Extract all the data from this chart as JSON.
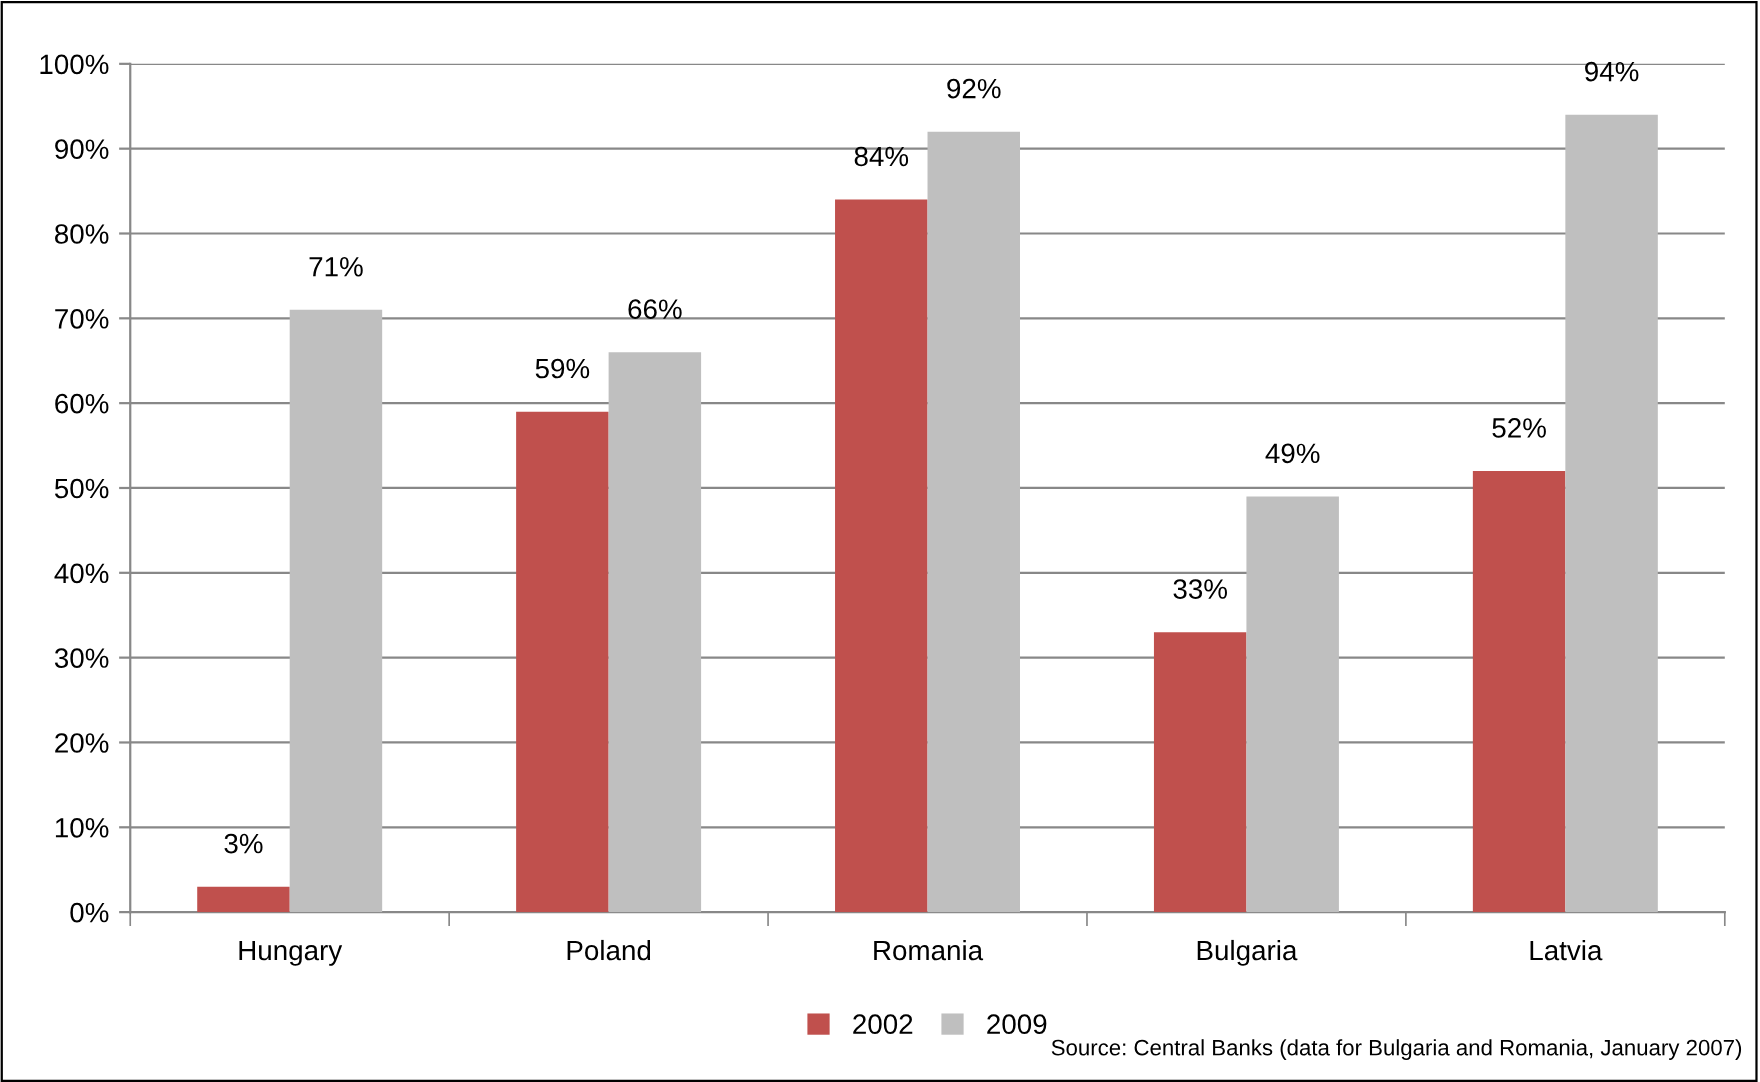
{
  "chart_data": {
    "type": "bar",
    "categories": [
      "Hungary",
      "Poland",
      "Romania",
      "Bulgaria",
      "Latvia"
    ],
    "series": [
      {
        "name": "2002",
        "color": "#c0504d",
        "values": [
          3,
          59,
          84,
          33,
          52
        ],
        "value_labels": [
          "3%",
          "59%",
          "84%",
          "33%",
          "52%"
        ]
      },
      {
        "name": "2009",
        "color": "#bfbfbf",
        "values": [
          71,
          66,
          92,
          49,
          94
        ],
        "value_labels": [
          "71%",
          "66%",
          "92%",
          "49%",
          "94%"
        ]
      }
    ],
    "ylim": [
      0,
      100
    ],
    "yticks": [
      {
        "value": 0,
        "label": "0%"
      },
      {
        "value": 10,
        "label": "10%"
      },
      {
        "value": 20,
        "label": "20%"
      },
      {
        "value": 30,
        "label": "30%"
      },
      {
        "value": 40,
        "label": "40%"
      },
      {
        "value": 50,
        "label": "50%"
      },
      {
        "value": 60,
        "label": "60%"
      },
      {
        "value": 70,
        "label": "70%"
      },
      {
        "value": 80,
        "label": "80%"
      },
      {
        "value": 90,
        "label": "90%"
      },
      {
        "value": 100,
        "label": "100%"
      }
    ],
    "grid": "y",
    "legend": "bottom",
    "annotations": [
      "Source: Central Banks (data for Bulgaria and Romania, January 2007)"
    ]
  }
}
